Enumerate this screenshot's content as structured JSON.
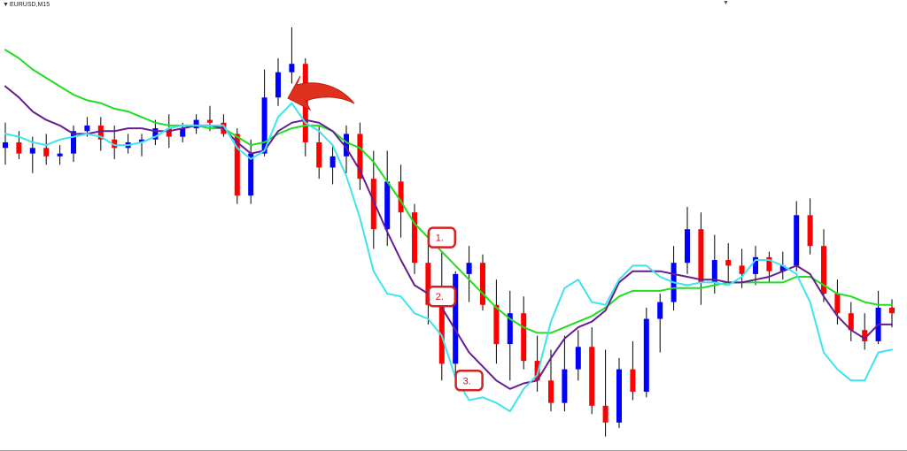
{
  "window": {
    "title": "EURUSD,M15"
  },
  "colors": {
    "bull_candle": "#0000ff",
    "bear_candle": "#ff0000",
    "wick": "#000000",
    "ma_slow": "#22dd22",
    "ma_medium": "#661d8f",
    "ma_fast": "#3fe3f0",
    "annotation": "#d42222"
  },
  "annotations": [
    {
      "label": "1.",
      "candle": 32,
      "price": 1.3063
    },
    {
      "label": "2.",
      "candle": 32,
      "price": 1.3042
    },
    {
      "label": "3.",
      "candle": 34,
      "price": 1.3012
    }
  ],
  "chart_data": {
    "type": "candlestick",
    "symbol": "EURUSD",
    "timeframe": "M15",
    "price_range": [
      1.299,
      1.3144
    ],
    "series": [
      {
        "name": "",
        "color": "#22dd22",
        "values": [
          1.313,
          1.3127,
          1.3123,
          1.312,
          1.3117,
          1.3114,
          1.3112,
          1.3111,
          1.3109,
          1.3108,
          1.3106,
          1.3104,
          1.3103,
          1.3103,
          1.3103,
          1.3102,
          1.3102,
          1.3099,
          1.3096,
          1.3097,
          1.31,
          1.3102,
          1.3103,
          1.3103,
          1.3101,
          1.3097,
          1.3095,
          1.309,
          1.3083,
          1.3076,
          1.3068,
          1.3063,
          1.3058,
          1.3053,
          1.3048,
          1.3043,
          1.3038,
          1.3034,
          1.3031,
          1.3029,
          1.3029,
          1.3031,
          1.3033,
          1.3035,
          1.3038,
          1.3042,
          1.3044,
          1.3044,
          1.3044,
          1.3045,
          1.3045,
          1.3045,
          1.3046,
          1.3047,
          1.3047,
          1.3047,
          1.3047,
          1.3047,
          1.3049,
          1.3049,
          1.3046,
          1.3043,
          1.3042,
          1.304,
          1.3039,
          1.3039
        ]
      },
      {
        "name": "",
        "color": "#661d8f",
        "values": [
          1.3117,
          1.3113,
          1.3108,
          1.3105,
          1.3103,
          1.31,
          1.31,
          1.3101,
          1.3101,
          1.3102,
          1.3102,
          1.3101,
          1.3101,
          1.3102,
          1.3103,
          1.3103,
          1.3102,
          1.3097,
          1.3093,
          1.3094,
          1.3101,
          1.3104,
          1.3105,
          1.3104,
          1.3101,
          1.3095,
          1.3087,
          1.3076,
          1.3065,
          1.3055,
          1.3046,
          1.3043,
          1.3038,
          1.303,
          1.3022,
          1.3017,
          1.3012,
          1.3009,
          1.3011,
          1.3012,
          1.302,
          1.3027,
          1.3031,
          1.3033,
          1.3037,
          1.3047,
          1.3051,
          1.3051,
          1.3051,
          1.305,
          1.3049,
          1.3048,
          1.3048,
          1.3047,
          1.3047,
          1.3048,
          1.3049,
          1.3051,
          1.3053,
          1.305,
          1.3042,
          1.3035,
          1.303,
          1.3027,
          1.3032,
          1.3032
        ]
      },
      {
        "name": "",
        "color": "#3fe3f0",
        "values": [
          1.31,
          1.3099,
          1.3097,
          1.3096,
          1.3098,
          1.3099,
          1.31,
          1.3099,
          1.3096,
          1.3096,
          1.3097,
          1.3099,
          1.3102,
          1.3103,
          1.3103,
          1.3103,
          1.3103,
          1.3095,
          1.3091,
          1.3094,
          1.3106,
          1.3111,
          1.3104,
          1.3101,
          1.3096,
          1.3085,
          1.307,
          1.3051,
          1.3043,
          1.3042,
          1.3036,
          1.3034,
          1.3028,
          1.3013,
          1.3005,
          1.3006,
          1.3004,
          1.3001,
          1.3009,
          1.3014,
          1.3033,
          1.3045,
          1.3048,
          1.304,
          1.3039,
          1.3048,
          1.3053,
          1.3053,
          1.3049,
          1.3047,
          1.3046,
          1.3047,
          1.3047,
          1.3046,
          1.3049,
          1.3055,
          1.3055,
          1.3053,
          1.305,
          1.304,
          1.3022,
          1.3016,
          1.3012,
          1.3012,
          1.3022,
          1.3023
        ]
      }
    ],
    "candles": [
      [
        1.3095,
        1.3104,
        1.3089,
        1.3097
      ],
      [
        1.3097,
        1.3101,
        1.3091,
        1.3093
      ],
      [
        1.3093,
        1.3099,
        1.3086,
        1.3095
      ],
      [
        1.3095,
        1.31,
        1.3089,
        1.3092
      ],
      [
        1.3092,
        1.3096,
        1.3089,
        1.3093
      ],
      [
        1.3093,
        1.3103,
        1.309,
        1.3101
      ],
      [
        1.3101,
        1.3106,
        1.3099,
        1.3103
      ],
      [
        1.3103,
        1.3106,
        1.3094,
        1.3098
      ],
      [
        1.3098,
        1.3103,
        1.3091,
        1.3095
      ],
      [
        1.3095,
        1.31,
        1.3093,
        1.3097
      ],
      [
        1.3097,
        1.31,
        1.3092,
        1.3098
      ],
      [
        1.3098,
        1.3105,
        1.3096,
        1.3102
      ],
      [
        1.3102,
        1.3107,
        1.3095,
        1.3099
      ],
      [
        1.3099,
        1.3104,
        1.3097,
        1.3102
      ],
      [
        1.3102,
        1.3107,
        1.31,
        1.3105
      ],
      [
        1.3105,
        1.311,
        1.3101,
        1.3104
      ],
      [
        1.3104,
        1.3107,
        1.3099,
        1.31
      ],
      [
        1.31,
        1.3102,
        1.3075,
        1.3078
      ],
      [
        1.3078,
        1.3098,
        1.3075,
        1.3093
      ],
      [
        1.3093,
        1.3123,
        1.3092,
        1.3113
      ],
      [
        1.3113,
        1.3127,
        1.311,
        1.3122
      ],
      [
        1.3122,
        1.3138,
        1.3118,
        1.3125
      ],
      [
        1.3125,
        1.3127,
        1.3092,
        1.3097
      ],
      [
        1.3097,
        1.3103,
        1.3084,
        1.3088
      ],
      [
        1.3088,
        1.3096,
        1.3082,
        1.3092
      ],
      [
        1.3092,
        1.3103,
        1.3086,
        1.31
      ],
      [
        1.31,
        1.3104,
        1.308,
        1.3084
      ],
      [
        1.3084,
        1.3094,
        1.3059,
        1.3066
      ],
      [
        1.3066,
        1.3094,
        1.306,
        1.3083
      ],
      [
        1.3083,
        1.3089,
        1.3063,
        1.3072
      ],
      [
        1.3072,
        1.3075,
        1.305,
        1.3054
      ],
      [
        1.3054,
        1.3061,
        1.3032,
        1.3039
      ],
      [
        1.3039,
        1.3058,
        1.3012,
        1.3018
      ],
      [
        1.3018,
        1.3051,
        1.3014,
        1.305
      ],
      [
        1.305,
        1.306,
        1.304,
        1.3054
      ],
      [
        1.3054,
        1.3057,
        1.3037,
        1.3039
      ],
      [
        1.3039,
        1.3048,
        1.3018,
        1.3025
      ],
      [
        1.3025,
        1.3044,
        1.3012,
        1.3036
      ],
      [
        1.3036,
        1.3042,
        1.3016,
        1.3019
      ],
      [
        1.3019,
        1.3028,
        1.3008,
        1.3012
      ],
      [
        1.3012,
        1.3023,
        1.3001,
        1.3004
      ],
      [
        1.3004,
        1.3028,
        1.3001,
        1.3016
      ],
      [
        1.3016,
        1.303,
        1.3012,
        1.3024
      ],
      [
        1.3024,
        1.3031,
        1.3,
        1.3003
      ],
      [
        1.3003,
        1.3023,
        1.2992,
        1.2997
      ],
      [
        1.2997,
        1.302,
        1.2995,
        1.3016
      ],
      [
        1.3016,
        1.3026,
        1.3005,
        1.3008
      ],
      [
        1.3008,
        1.3038,
        1.3006,
        1.3034
      ],
      [
        1.3034,
        1.3043,
        1.3022,
        1.304
      ],
      [
        1.304,
        1.306,
        1.3037,
        1.3054
      ],
      [
        1.3054,
        1.3074,
        1.305,
        1.3066
      ],
      [
        1.3066,
        1.3072,
        1.3039,
        1.3047
      ],
      [
        1.3047,
        1.3064,
        1.3043,
        1.3055
      ],
      [
        1.3055,
        1.3061,
        1.3047,
        1.3053
      ],
      [
        1.3053,
        1.3059,
        1.3045,
        1.305
      ],
      [
        1.305,
        1.306,
        1.3046,
        1.3056
      ],
      [
        1.3056,
        1.3058,
        1.3047,
        1.3051
      ],
      [
        1.3051,
        1.3058,
        1.3048,
        1.3053
      ],
      [
        1.3053,
        1.3076,
        1.3051,
        1.3071
      ],
      [
        1.3071,
        1.3077,
        1.3057,
        1.306
      ],
      [
        1.306,
        1.3066,
        1.304,
        1.3043
      ],
      [
        1.3043,
        1.3048,
        1.3032,
        1.3036
      ],
      [
        1.3036,
        1.304,
        1.3026,
        1.303
      ],
      [
        1.303,
        1.3036,
        1.3023,
        1.3026
      ],
      [
        1.3026,
        1.3044,
        1.3025,
        1.3038
      ],
      [
        1.3038,
        1.3041,
        1.3031,
        1.3036
      ]
    ],
    "xlabel": "",
    "ylabel": ""
  }
}
